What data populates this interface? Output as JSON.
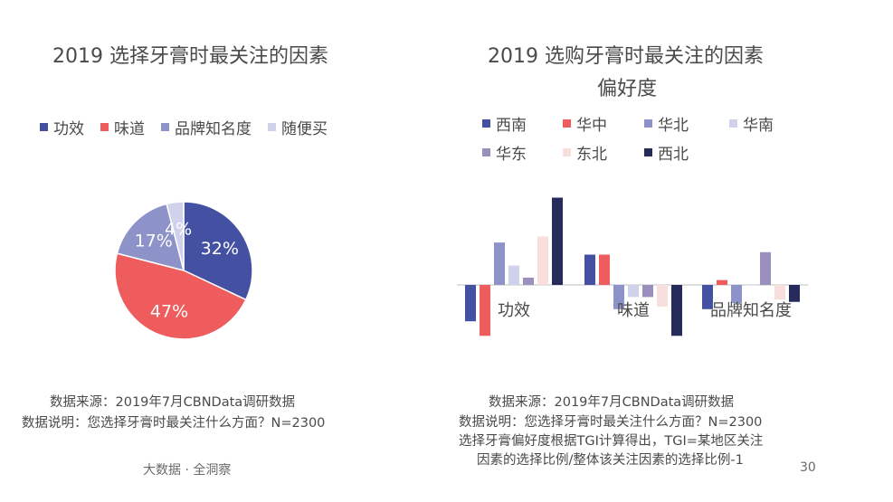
{
  "left": {
    "title": "2019 选择牙膏时最关注的因素",
    "notes": [
      "数据来源：2019年7月CBNData调研数据",
      "数据说明：您选择牙膏时最关注什么方面？N=2300"
    ]
  },
  "right": {
    "title_line1": "2019 选购牙膏时最关注的因素",
    "title_line2": "偏好度",
    "notes": [
      "数据来源：2019年7月CBNData调研数据",
      "数据说明：您选择牙膏时最关注什么方面？N=2300",
      "选择牙膏偏好度根据TGI计算得出，TGI=某地区关注",
      "因素的选择比例/整体该关注因素的选择比例-1"
    ]
  },
  "footer": {
    "brand": "大数据 · 全洞察",
    "page": "30"
  },
  "chart_data": [
    {
      "type": "pie",
      "labels": [
        "功效",
        "味道",
        "品牌知名度",
        "随便买"
      ],
      "values": [
        32,
        47,
        17,
        4
      ],
      "value_labels": [
        "32%",
        "47%",
        "17%",
        "4%"
      ],
      "colors": [
        "#4451a3",
        "#ee5c5e",
        "#8d93c8",
        "#cfd2ea"
      ],
      "legend_position": "top"
    },
    {
      "type": "bar",
      "categories": [
        "功效",
        "味道",
        "品牌知名度"
      ],
      "series": [
        {
          "name": "西南",
          "color": "#4451a3",
          "values": [
            -0.3,
            0.25,
            -0.2
          ]
        },
        {
          "name": "华中",
          "color": "#ee5c5e",
          "values": [
            -0.42,
            0.25,
            0.04
          ]
        },
        {
          "name": "华北",
          "color": "#8d93c8",
          "values": [
            0.35,
            -0.2,
            -0.15
          ]
        },
        {
          "name": "华南",
          "color": "#cfd2ea",
          "values": [
            0.16,
            -0.1,
            0.0
          ]
        },
        {
          "name": "华东",
          "color": "#9a8fbd",
          "values": [
            0.06,
            -0.1,
            0.27
          ]
        },
        {
          "name": "东北",
          "color": "#f9dede",
          "values": [
            0.4,
            -0.18,
            -0.12
          ]
        },
        {
          "name": "西北",
          "color": "#262b5c",
          "values": [
            0.72,
            -0.42,
            -0.14
          ]
        }
      ],
      "legend_position": "top",
      "grid": false
    }
  ]
}
